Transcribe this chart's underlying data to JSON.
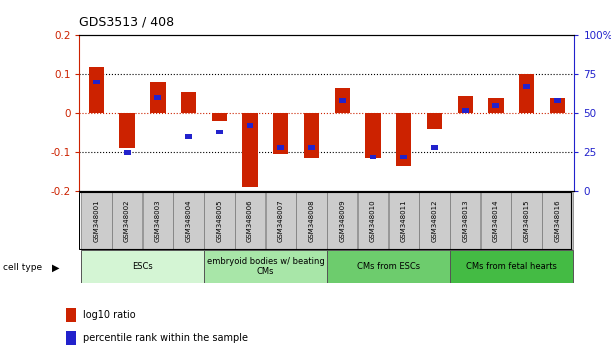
{
  "title": "GDS3513 / 408",
  "samples": [
    "GSM348001",
    "GSM348002",
    "GSM348003",
    "GSM348004",
    "GSM348005",
    "GSM348006",
    "GSM348007",
    "GSM348008",
    "GSM348009",
    "GSM348010",
    "GSM348011",
    "GSM348012",
    "GSM348013",
    "GSM348014",
    "GSM348015",
    "GSM348016"
  ],
  "log10_ratio": [
    0.12,
    -0.09,
    0.08,
    0.055,
    -0.02,
    -0.19,
    -0.105,
    -0.115,
    0.065,
    -0.115,
    -0.135,
    -0.04,
    0.045,
    0.04,
    0.1,
    0.038
  ],
  "percentile_rank_pct": [
    70,
    25,
    60,
    35,
    38,
    42,
    28,
    28,
    58,
    22,
    22,
    28,
    52,
    55,
    67,
    58
  ],
  "ylim": [
    -0.2,
    0.2
  ],
  "yticks_left": [
    -0.2,
    -0.1,
    0.0,
    0.1,
    0.2
  ],
  "yticks_right": [
    0,
    25,
    50,
    75,
    100
  ],
  "cell_type_groups": [
    {
      "label": "ESCs",
      "start": 0,
      "end": 4,
      "color": "#d4f5d4"
    },
    {
      "label": "embryoid bodies w/ beating\nCMs",
      "start": 4,
      "end": 8,
      "color": "#a8e6a8"
    },
    {
      "label": "CMs from ESCs",
      "start": 8,
      "end": 12,
      "color": "#6dcc6d"
    },
    {
      "label": "CMs from fetal hearts",
      "start": 12,
      "end": 16,
      "color": "#44bb44"
    }
  ],
  "bar_color_red": "#cc2200",
  "bar_color_blue": "#2222cc",
  "bar_width": 0.5,
  "blue_bar_height": 0.012,
  "grid_color": "#000000",
  "bg_color": "#ffffff",
  "sample_box_color": "#cccccc",
  "legend_red_label": "log10 ratio",
  "legend_blue_label": "percentile rank within the sample",
  "cell_type_label": "cell type"
}
